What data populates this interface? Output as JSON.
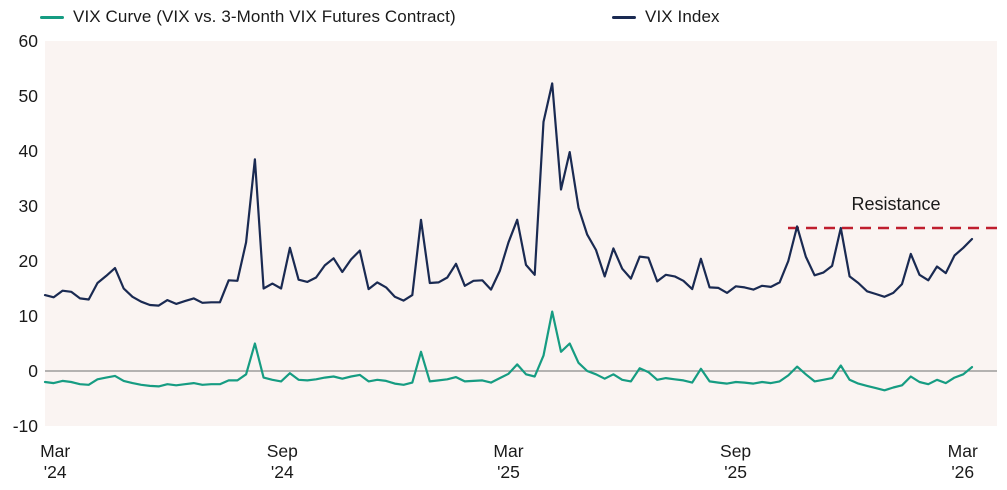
{
  "annotations": {
    "resistance_label": "Resistance",
    "resistance_level": 26,
    "resistance_color": "#bf1e2e"
  },
  "colors": {
    "vix_curve": "#169c82",
    "vix_index": "#1a2a52",
    "zero_line": "#8a8a8a",
    "plot_background": "#faf4f2",
    "text": "#1a1a1a"
  },
  "chart_data": {
    "type": "line",
    "title": "",
    "xlabel": "",
    "ylabel": "",
    "ylim": [
      -10,
      60
    ],
    "yticks": [
      60,
      50,
      40,
      30,
      20,
      10,
      0,
      -10
    ],
    "xticks": [
      {
        "line1": "Mar",
        "line2": "'24",
        "frac": 0.011
      },
      {
        "line1": "Sep",
        "line2": "'24",
        "frac": 0.256
      },
      {
        "line1": "Mar",
        "line2": "'25",
        "frac": 0.5
      },
      {
        "line1": "Sep",
        "line2": "'25",
        "frac": 0.745
      },
      {
        "line1": "Mar",
        "line2": "'26",
        "frac": 0.99
      }
    ],
    "x_unit": "weekly samples, Feb 2024 - Mar 2026",
    "grid": false,
    "zero_line": 0,
    "legend_position": "top",
    "series": [
      {
        "name": "VIX Curve (VIX vs. 3-Month VIX Futures Contract)",
        "color": "#169c82",
        "values": [
          -2.0,
          -2.2,
          -1.8,
          -2.0,
          -2.4,
          -2.5,
          -1.5,
          -1.2,
          -0.9,
          -1.8,
          -2.2,
          -2.5,
          -2.7,
          -2.8,
          -2.4,
          -2.6,
          -2.4,
          -2.2,
          -2.5,
          -2.4,
          -2.4,
          -1.7,
          -1.7,
          -0.6,
          5.0,
          -1.2,
          -1.6,
          -1.9,
          -0.4,
          -1.6,
          -1.7,
          -1.5,
          -1.2,
          -1.0,
          -1.4,
          -1.0,
          -0.7,
          -1.9,
          -1.6,
          -1.8,
          -2.3,
          -2.5,
          -2.1,
          3.5,
          -1.9,
          -1.7,
          -1.5,
          -1.1,
          -1.9,
          -1.8,
          -1.7,
          -2.1,
          -1.3,
          -0.5,
          1.2,
          -0.6,
          -1.0,
          2.8,
          10.8,
          3.5,
          5.0,
          1.5,
          0.0,
          -0.6,
          -1.4,
          -0.6,
          -1.6,
          -1.9,
          0.5,
          -0.2,
          -1.6,
          -1.3,
          -1.5,
          -1.7,
          -2.1,
          0.4,
          -1.9,
          -2.1,
          -2.3,
          -2.0,
          -2.1,
          -2.3,
          -2.0,
          -2.2,
          -1.9,
          -0.8,
          0.8,
          -0.6,
          -1.9,
          -1.6,
          -1.3,
          1.0,
          -1.6,
          -2.3,
          -2.7,
          -3.1,
          -3.5,
          -3.0,
          -2.6,
          -1.0,
          -2.0,
          -2.4,
          -1.6,
          -2.2,
          -1.2,
          -0.6,
          0.7
        ]
      },
      {
        "name": "VIX Index",
        "color": "#1a2a52",
        "values": [
          13.8,
          13.4,
          14.6,
          14.4,
          13.2,
          13.0,
          16.0,
          17.3,
          18.7,
          15.0,
          13.5,
          12.6,
          12.0,
          11.9,
          12.9,
          12.2,
          12.7,
          13.2,
          12.4,
          12.5,
          12.5,
          16.5,
          16.4,
          23.4,
          38.5,
          15.0,
          15.9,
          15.0,
          22.4,
          16.6,
          16.2,
          17.0,
          19.2,
          20.5,
          18.0,
          20.3,
          21.9,
          14.9,
          16.1,
          15.2,
          13.5,
          12.8,
          13.8,
          27.5,
          16.0,
          16.1,
          17.0,
          19.5,
          15.5,
          16.4,
          16.5,
          14.8,
          18.2,
          23.4,
          27.5,
          19.3,
          17.5,
          45.3,
          52.3,
          33.0,
          39.8,
          29.7,
          24.8,
          22.0,
          17.2,
          22.3,
          18.6,
          16.8,
          20.8,
          20.6,
          16.3,
          17.5,
          17.2,
          16.4,
          14.9,
          20.4,
          15.2,
          15.1,
          14.2,
          15.4,
          15.2,
          14.8,
          15.5,
          15.3,
          16.1,
          20.0,
          26.3,
          20.8,
          17.4,
          17.9,
          19.1,
          26.0,
          17.2,
          16.0,
          14.5,
          14.0,
          13.5,
          14.2,
          15.8,
          21.3,
          17.5,
          16.5,
          19.0,
          17.8,
          21.0,
          22.4,
          24.0
        ]
      }
    ]
  }
}
